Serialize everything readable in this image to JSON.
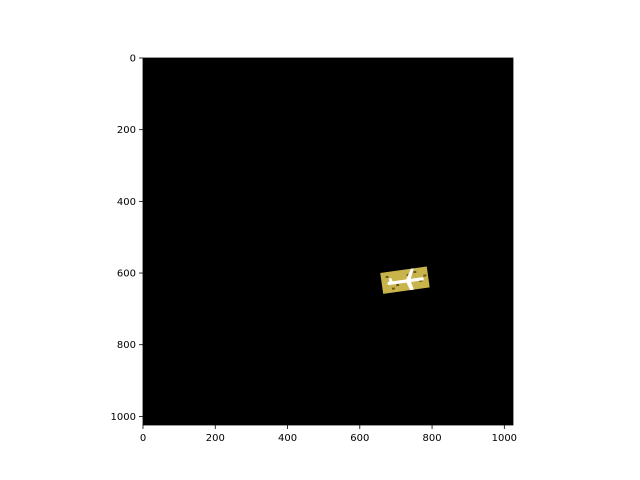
{
  "chart_data": {
    "type": "heatmap",
    "title": "",
    "xlabel": "",
    "ylabel": "",
    "xlim": [
      0,
      1024
    ],
    "ylim": [
      1024,
      0
    ],
    "y_inverted": true,
    "grid": false,
    "legend": "none",
    "x_ticks": [
      {
        "value": 0,
        "label": "0"
      },
      {
        "value": 200,
        "label": "200"
      },
      {
        "value": 400,
        "label": "400"
      },
      {
        "value": 600,
        "label": "600"
      },
      {
        "value": 800,
        "label": "800"
      },
      {
        "value": 1000,
        "label": "1000"
      }
    ],
    "y_ticks": [
      {
        "value": 0,
        "label": "0"
      },
      {
        "value": 200,
        "label": "200"
      },
      {
        "value": 400,
        "label": "400"
      },
      {
        "value": 600,
        "label": "600"
      },
      {
        "value": 800,
        "label": "800"
      },
      {
        "value": 1000,
        "label": "1000"
      }
    ],
    "background_color": "#000000",
    "visible_patch": {
      "description_label": "airplane-chip",
      "x_range": [
        660,
        790
      ],
      "y_range": [
        585,
        655
      ],
      "rotation_deg": -8,
      "colors": {
        "ground": "#c8b44a",
        "ground_dark": "#6a5a22",
        "plane": "#ffffff"
      }
    }
  }
}
